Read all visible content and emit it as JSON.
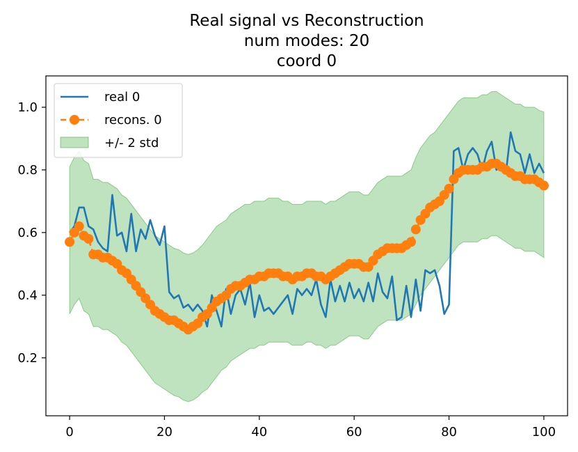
{
  "chart_data": {
    "type": "line",
    "title_lines": [
      "Real signal vs Reconstruction",
      "num modes: 20",
      "coord 0"
    ],
    "xlabel": "",
    "ylabel": "",
    "xlim": [
      -5,
      105
    ],
    "ylim": [
      0.015,
      1.1
    ],
    "xticks": [
      0,
      20,
      40,
      60,
      80,
      100
    ],
    "yticks": [
      0.2,
      0.4,
      0.6,
      0.8,
      1.0
    ],
    "xtick_labels": [
      "0",
      "20",
      "40",
      "60",
      "80",
      "100"
    ],
    "ytick_labels": [
      "0.2",
      "0.4",
      "0.6",
      "0.8",
      "1.0"
    ],
    "legend_position": "upper-left",
    "colors": {
      "real": "#1f77b4",
      "recons": "#ff7f0e",
      "band_fill": "#2ca02c"
    },
    "x": [
      0,
      1,
      2,
      3,
      4,
      5,
      6,
      7,
      8,
      9,
      10,
      11,
      12,
      13,
      14,
      15,
      16,
      17,
      18,
      19,
      20,
      21,
      22,
      23,
      24,
      25,
      26,
      27,
      28,
      29,
      30,
      31,
      32,
      33,
      34,
      35,
      36,
      37,
      38,
      39,
      40,
      41,
      42,
      43,
      44,
      45,
      46,
      47,
      48,
      49,
      50,
      51,
      52,
      53,
      54,
      55,
      56,
      57,
      58,
      59,
      60,
      61,
      62,
      63,
      64,
      65,
      66,
      67,
      68,
      69,
      70,
      71,
      72,
      73,
      74,
      75,
      76,
      77,
      78,
      79,
      80,
      81,
      82,
      83,
      84,
      85,
      86,
      87,
      88,
      89,
      90,
      91,
      92,
      93,
      94,
      95,
      96,
      97,
      98,
      99,
      100
    ],
    "series": [
      {
        "name": "real 0",
        "style": "line",
        "values": [
          0.6,
          0.62,
          0.68,
          0.68,
          0.62,
          0.61,
          0.57,
          0.55,
          0.54,
          0.72,
          0.59,
          0.6,
          0.54,
          0.66,
          0.54,
          0.61,
          0.58,
          0.64,
          0.59,
          0.56,
          0.62,
          0.41,
          0.39,
          0.4,
          0.36,
          0.37,
          0.35,
          0.37,
          0.35,
          0.3,
          0.4,
          0.35,
          0.3,
          0.42,
          0.34,
          0.4,
          0.42,
          0.37,
          0.44,
          0.33,
          0.4,
          0.35,
          0.36,
          0.34,
          0.36,
          0.38,
          0.4,
          0.34,
          0.42,
          0.4,
          0.42,
          0.4,
          0.45,
          0.37,
          0.33,
          0.45,
          0.38,
          0.43,
          0.38,
          0.44,
          0.39,
          0.42,
          0.38,
          0.44,
          0.38,
          0.47,
          0.41,
          0.39,
          0.46,
          0.32,
          0.33,
          0.43,
          0.33,
          0.45,
          0.35,
          0.48,
          0.47,
          0.48,
          0.43,
          0.34,
          0.37,
          0.86,
          0.87,
          0.8,
          0.85,
          0.87,
          0.85,
          0.8,
          0.86,
          0.89,
          0.8,
          0.82,
          0.79,
          0.92,
          0.86,
          0.85,
          0.79,
          0.85,
          0.79,
          0.82,
          0.79
        ]
      },
      {
        "name": "recons. 0",
        "style": "dashed-line-with-markers",
        "values": [
          0.57,
          0.6,
          0.62,
          0.59,
          0.58,
          0.53,
          0.53,
          0.52,
          0.52,
          0.51,
          0.5,
          0.48,
          0.47,
          0.45,
          0.43,
          0.41,
          0.39,
          0.37,
          0.35,
          0.34,
          0.33,
          0.32,
          0.32,
          0.31,
          0.3,
          0.29,
          0.3,
          0.31,
          0.33,
          0.34,
          0.36,
          0.38,
          0.39,
          0.4,
          0.42,
          0.43,
          0.43,
          0.44,
          0.45,
          0.45,
          0.46,
          0.46,
          0.47,
          0.47,
          0.47,
          0.46,
          0.46,
          0.45,
          0.46,
          0.46,
          0.47,
          0.47,
          0.46,
          0.46,
          0.45,
          0.46,
          0.47,
          0.48,
          0.49,
          0.5,
          0.5,
          0.5,
          0.49,
          0.49,
          0.51,
          0.53,
          0.54,
          0.55,
          0.55,
          0.55,
          0.55,
          0.56,
          0.57,
          0.61,
          0.64,
          0.66,
          0.68,
          0.69,
          0.7,
          0.72,
          0.74,
          0.77,
          0.79,
          0.8,
          0.8,
          0.8,
          0.8,
          0.81,
          0.81,
          0.82,
          0.82,
          0.81,
          0.8,
          0.79,
          0.78,
          0.78,
          0.77,
          0.77,
          0.77,
          0.76,
          0.75
        ]
      },
      {
        "name": "+/- 2 std",
        "style": "filled-band",
        "lower": [
          0.34,
          0.37,
          0.39,
          0.35,
          0.34,
          0.3,
          0.3,
          0.29,
          0.29,
          0.28,
          0.27,
          0.25,
          0.24,
          0.22,
          0.2,
          0.18,
          0.16,
          0.14,
          0.12,
          0.11,
          0.1,
          0.09,
          0.08,
          0.075,
          0.065,
          0.06,
          0.065,
          0.075,
          0.09,
          0.1,
          0.12,
          0.14,
          0.16,
          0.17,
          0.19,
          0.2,
          0.21,
          0.22,
          0.23,
          0.23,
          0.24,
          0.24,
          0.25,
          0.25,
          0.25,
          0.25,
          0.25,
          0.24,
          0.24,
          0.24,
          0.25,
          0.25,
          0.24,
          0.24,
          0.23,
          0.24,
          0.24,
          0.25,
          0.26,
          0.27,
          0.27,
          0.27,
          0.26,
          0.26,
          0.28,
          0.3,
          0.31,
          0.32,
          0.32,
          0.32,
          0.32,
          0.33,
          0.34,
          0.37,
          0.4,
          0.42,
          0.44,
          0.46,
          0.48,
          0.5,
          0.52,
          0.54,
          0.56,
          0.57,
          0.57,
          0.57,
          0.57,
          0.58,
          0.58,
          0.59,
          0.59,
          0.58,
          0.57,
          0.56,
          0.55,
          0.55,
          0.54,
          0.54,
          0.54,
          0.53,
          0.52
        ],
        "upper": [
          0.81,
          0.84,
          0.86,
          0.83,
          0.82,
          0.77,
          0.77,
          0.76,
          0.76,
          0.75,
          0.74,
          0.72,
          0.71,
          0.69,
          0.67,
          0.65,
          0.63,
          0.61,
          0.59,
          0.58,
          0.57,
          0.56,
          0.55,
          0.545,
          0.535,
          0.53,
          0.535,
          0.545,
          0.56,
          0.58,
          0.6,
          0.62,
          0.63,
          0.64,
          0.66,
          0.67,
          0.68,
          0.69,
          0.69,
          0.7,
          0.7,
          0.7,
          0.71,
          0.71,
          0.71,
          0.7,
          0.7,
          0.69,
          0.69,
          0.69,
          0.7,
          0.7,
          0.7,
          0.7,
          0.69,
          0.7,
          0.7,
          0.71,
          0.72,
          0.73,
          0.73,
          0.73,
          0.72,
          0.72,
          0.74,
          0.76,
          0.77,
          0.78,
          0.78,
          0.78,
          0.78,
          0.79,
          0.8,
          0.84,
          0.87,
          0.89,
          0.91,
          0.92,
          0.94,
          0.96,
          0.98,
          1.0,
          1.02,
          1.03,
          1.03,
          1.03,
          1.03,
          1.04,
          1.04,
          1.05,
          1.05,
          1.04,
          1.03,
          1.02,
          1.01,
          1.01,
          1.0,
          1.0,
          1.0,
          0.99,
          0.985
        ]
      }
    ]
  }
}
